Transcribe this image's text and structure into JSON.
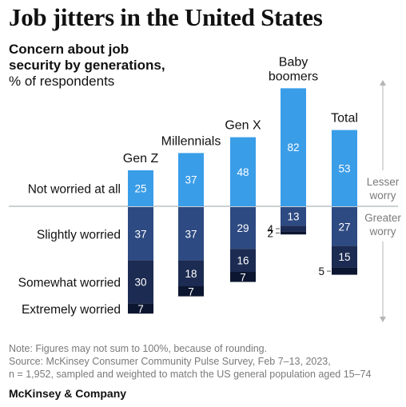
{
  "title": "Job jitters in the United States",
  "subtitle_bold": "Concern about job security by generations,",
  "subtitle_unit": "% of respondents",
  "note": "Note: Figures may not sum to 100%, because of rounding.",
  "source_1": "Source: McKinsey Consumer Community Pulse Survey, Feb 7–13, 2023,",
  "source_2": "n = 1,952, sampled and weighted to match the US general population aged 15–74",
  "brand": "McKinsey & Company",
  "colors": {
    "not_worried": "#3a9de8",
    "slightly": "#2e4a82",
    "somewhat": "#1c2b52",
    "extremely": "#0c1630",
    "baseline": "#9aa0a6",
    "arrow": "#b5b5b5"
  },
  "chart_data": {
    "type": "bar",
    "stacked": "diverging",
    "categories": [
      "Gen Z",
      "Millennials",
      "Gen X",
      "Baby boomers",
      "Total"
    ],
    "category_lines": [
      [
        "Gen Z"
      ],
      [
        "Millennials"
      ],
      [
        "Gen X"
      ],
      [
        "Baby",
        "boomers"
      ],
      [
        "Total"
      ]
    ],
    "series": [
      {
        "name": "Not worried at all",
        "direction": "up",
        "color": "#3a9de8",
        "values": [
          25,
          37,
          48,
          82,
          53
        ]
      },
      {
        "name": "Slightly worried",
        "direction": "down",
        "color": "#2e4a82",
        "values": [
          37,
          37,
          29,
          13,
          27
        ]
      },
      {
        "name": "Somewhat worried",
        "direction": "down",
        "color": "#1c2b52",
        "values": [
          30,
          18,
          16,
          4,
          15
        ]
      },
      {
        "name": "Extremely worried",
        "direction": "down",
        "color": "#0c1630",
        "values": [
          7,
          7,
          7,
          2,
          5
        ]
      }
    ],
    "axis_annotations": {
      "up": [
        "Lesser",
        "worry"
      ],
      "down": [
        "Greater",
        "worry"
      ]
    },
    "legend": "row labels on left",
    "grid": false
  }
}
